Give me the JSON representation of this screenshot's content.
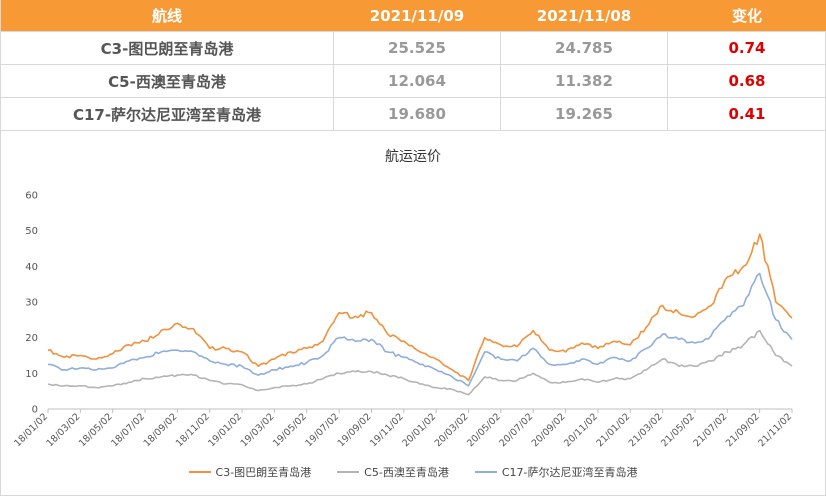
{
  "table": {
    "headers": [
      "航线",
      "2021/11/09",
      "2021/11/08",
      "变化"
    ],
    "rows": [
      {
        "route": "C3-图巴朗至青岛港",
        "v1": "25.525",
        "v2": "24.785",
        "change": "0.74"
      },
      {
        "route": "C5-西澳至青岛港",
        "v1": "12.064",
        "v2": "11.382",
        "change": "0.68"
      },
      {
        "route": "C17-萨尔达尼亚湾至青岛港",
        "v1": "19.680",
        "v2": "19.265",
        "change": "0.41"
      }
    ]
  },
  "chart_data": {
    "type": "line",
    "title": "航运运价",
    "xlabel": "",
    "ylabel": "",
    "ylim": [
      0,
      60
    ],
    "yticks": [
      0,
      10,
      20,
      30,
      40,
      50,
      60
    ],
    "x_tick_labels": [
      "18/01/02",
      "18/03/02",
      "18/05/02",
      "18/07/02",
      "18/09/02",
      "18/11/02",
      "19/01/02",
      "19/03/02",
      "19/05/02",
      "19/07/02",
      "19/09/02",
      "19/11/02",
      "20/01/02",
      "20/03/02",
      "20/05/02",
      "20/07/02",
      "20/09/02",
      "20/11/02",
      "21/01/02",
      "21/03/02",
      "21/05/02",
      "21/07/02",
      "21/09/02",
      "21/11/02"
    ],
    "grid": false,
    "legend_position": "bottom",
    "note": "Approximate monthly readings; 47 points from 2018-01 to 2021-11",
    "series": [
      {
        "name": "C3-图巴朗至青岛港",
        "color": "#f0913c",
        "values": [
          16.5,
          14.5,
          15.0,
          14.0,
          15.5,
          18.0,
          19.0,
          22.0,
          24.0,
          22.5,
          17.0,
          17.0,
          16.0,
          12.0,
          14.0,
          16.0,
          17.0,
          19.0,
          27.0,
          26.0,
          27.0,
          21.0,
          19.0,
          16.0,
          14.0,
          11.0,
          8.0,
          20.0,
          18.0,
          17.5,
          22.0,
          16.5,
          16.0,
          18.5,
          17.0,
          19.0,
          18.0,
          23.0,
          29.0,
          27.0,
          26.0,
          29.0,
          37.0,
          40.0,
          49.0,
          30.0,
          25.5
        ]
      },
      {
        "name": "C5-西澳至青岛港",
        "color": "#b4b4b4",
        "values": [
          7.0,
          6.5,
          6.5,
          6.0,
          6.5,
          7.5,
          8.5,
          9.0,
          9.5,
          9.5,
          8.0,
          7.0,
          6.8,
          5.2,
          6.0,
          6.5,
          7.0,
          8.5,
          10.0,
          10.5,
          10.5,
          9.5,
          8.5,
          7.0,
          6.0,
          5.5,
          4.0,
          9.0,
          8.0,
          8.0,
          10.0,
          7.5,
          7.5,
          8.5,
          7.5,
          8.5,
          8.5,
          11.0,
          14.0,
          12.0,
          12.0,
          13.5,
          16.0,
          18.0,
          22.0,
          15.0,
          12.0
        ]
      },
      {
        "name": "C17-萨尔达尼亚湾至青岛港",
        "color": "#8faedc",
        "values": [
          12.5,
          11.0,
          11.5,
          11.0,
          11.5,
          13.5,
          14.5,
          16.0,
          16.5,
          16.0,
          13.5,
          12.5,
          12.0,
          9.5,
          11.0,
          12.0,
          13.0,
          15.0,
          20.0,
          19.0,
          19.5,
          16.0,
          14.5,
          12.5,
          11.0,
          9.0,
          6.5,
          16.0,
          14.0,
          13.5,
          17.0,
          12.5,
          12.5,
          14.0,
          12.5,
          14.5,
          13.5,
          17.0,
          21.0,
          19.5,
          18.5,
          20.5,
          26.0,
          29.0,
          38.0,
          25.0,
          19.5
        ]
      }
    ]
  }
}
